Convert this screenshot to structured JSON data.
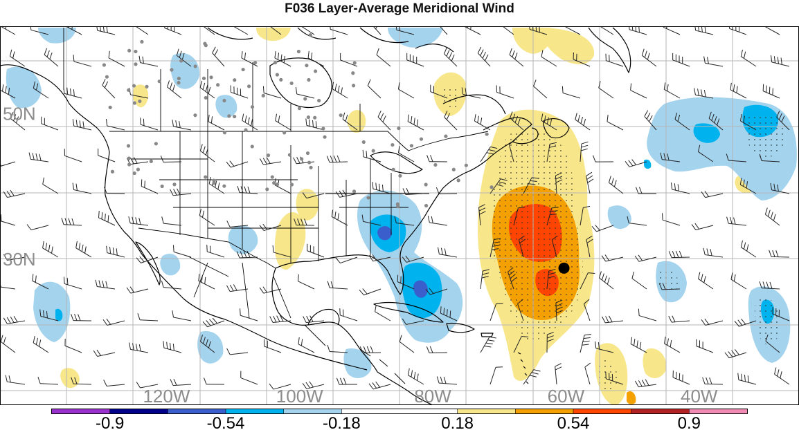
{
  "title": "F036 Layer-Average Meridional Wind",
  "map": {
    "projection": "equirectangular",
    "lon_range": [
      -145,
      -25
    ],
    "lat_range": [
      10,
      62
    ],
    "lat_labels": [
      {
        "text": "50N",
        "lat": 50
      },
      {
        "text": "30N",
        "lat": 30
      }
    ],
    "lon_labels": [
      {
        "text": "120W",
        "lon": -120
      },
      {
        "text": "100W",
        "lon": -100
      },
      {
        "text": "80W",
        "lon": -80
      },
      {
        "text": "60W",
        "lon": -60
      },
      {
        "text": "40W",
        "lon": -40
      }
    ],
    "gridlines": true,
    "storm_marker": {
      "lon": -60.3,
      "lat": 28.8
    }
  },
  "colorbar": {
    "tick_labels": [
      "-0.9",
      "-0.54",
      "-0.18",
      "0.18",
      "0.54",
      "0.9"
    ],
    "colors": [
      "#9932cc",
      "#00008b",
      "#3a5fcd",
      "#00b2ee",
      "#a4d3ee",
      "#ffffff",
      "#ffffff",
      "#f7e68a",
      "#f4a000",
      "#ff4500",
      "#b22222",
      "#f08cb4"
    ]
  }
}
